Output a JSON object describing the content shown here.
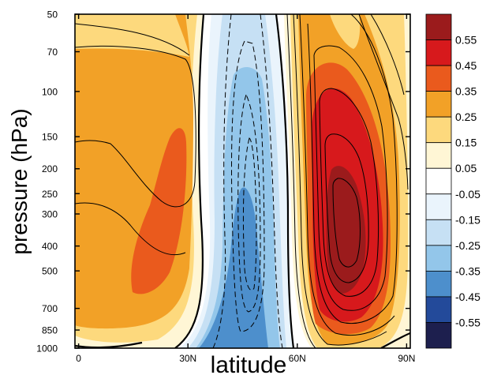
{
  "chart_data": {
    "type": "heatmap",
    "title": "",
    "xlabel": "latitude",
    "ylabel": "pressure (hPa)",
    "x_ticks": [
      {
        "value": 0,
        "label": "0"
      },
      {
        "value": 30,
        "label": "30N"
      },
      {
        "value": 60,
        "label": "60N"
      },
      {
        "value": 90,
        "label": "90N"
      }
    ],
    "y_ticks": [
      {
        "value": 50,
        "label": "50"
      },
      {
        "value": 70,
        "label": "70"
      },
      {
        "value": 100,
        "label": "100"
      },
      {
        "value": 150,
        "label": "150"
      },
      {
        "value": 200,
        "label": "200"
      },
      {
        "value": 250,
        "label": "250"
      },
      {
        "value": 300,
        "label": "300"
      },
      {
        "value": 400,
        "label": "400"
      },
      {
        "value": 500,
        "label": "500"
      },
      {
        "value": 700,
        "label": "700"
      },
      {
        "value": 850,
        "label": "850"
      },
      {
        "value": 1000,
        "label": "1000"
      }
    ],
    "xlim": [
      -1,
      91
    ],
    "ylim": [
      1000,
      50
    ],
    "y_scale": "log",
    "grid": false,
    "colorbar": {
      "position": "right",
      "colors": [
        "#9b1b1c",
        "#d7191c",
        "#ea5a1d",
        "#f2a127",
        "#fdd97d",
        "#fff6d5",
        "#ffffff",
        "#eaf4fc",
        "#c6e0f4",
        "#93c6ea",
        "#4d8fcc",
        "#234a9a",
        "#1d1f4e"
      ],
      "labels": [
        "0.55",
        "0.45",
        "0.35",
        "0.25",
        "0.15",
        "0.05",
        "-0.05",
        "-0.15",
        "-0.25",
        "-0.35",
        "-0.45",
        "-0.55"
      ]
    },
    "contour_lines": {
      "solid": "positive values",
      "dashed": "negative values",
      "bold": "zero line"
    }
  }
}
